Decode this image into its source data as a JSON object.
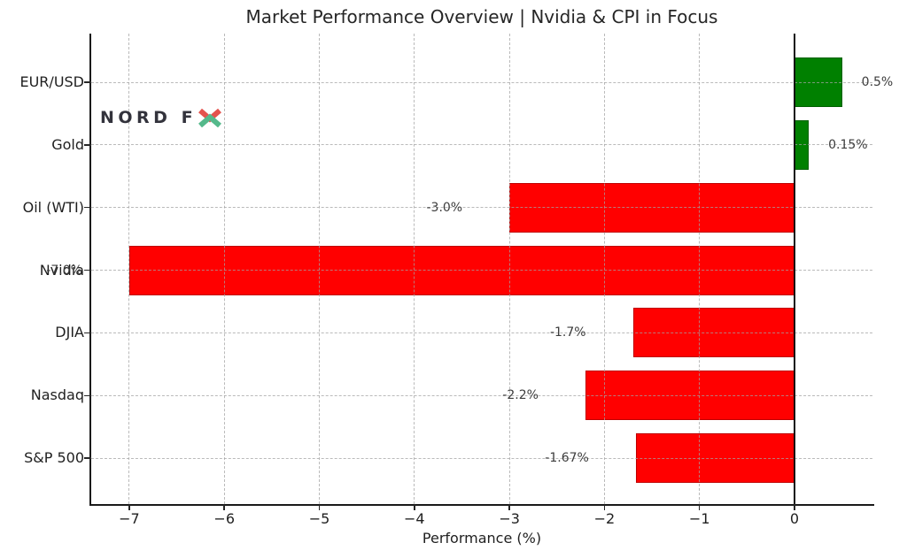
{
  "chart_data": {
    "type": "bar",
    "orientation": "horizontal",
    "title": "Market Performance Overview | Nvidia & CPI in Focus",
    "xlabel": "Performance (%)",
    "categories": [
      "EUR/USD",
      "Gold",
      "Oil (WTI)",
      "Nvidia",
      "DJIA",
      "Nasdaq",
      "S&P 500"
    ],
    "values": [
      0.5,
      0.15,
      -3.0,
      -7.0,
      -1.7,
      -2.2,
      -1.67
    ],
    "bar_labels": [
      "0.5%",
      "0.15%",
      "-3.0%",
      "-7.0%",
      "-1.7%",
      "-2.2%",
      "-1.67%"
    ],
    "xticks": [
      -7,
      -6,
      -5,
      -4,
      -3,
      -2,
      -1,
      0
    ],
    "xtick_labels": [
      "−7",
      "−6",
      "−5",
      "−4",
      "−3",
      "−2",
      "−1",
      "0"
    ],
    "xlim": [
      -7.4,
      0.82
    ],
    "grid": "dashed",
    "legend_position": "none",
    "colors": {
      "positive": "#008000",
      "negative": "#ff0000",
      "gridline": "#a3a3a3",
      "axis": "#1a1a1a",
      "text": "#262626",
      "value_label": "#3c3c3c"
    }
  },
  "watermark": {
    "text_prefix": "NORD F",
    "text_color": "#33333c",
    "x_top_color": "#e4534e",
    "x_bottom_color": "#55b98b"
  }
}
